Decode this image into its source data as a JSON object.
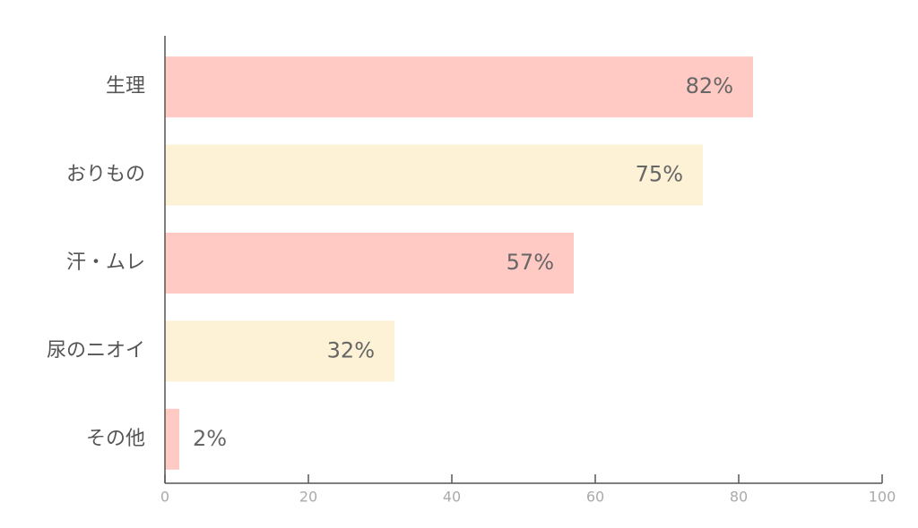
{
  "chart_data": {
    "type": "hbar",
    "categories": [
      "生理",
      "おりもの",
      "汗・ムレ",
      "尿のニオイ",
      "その他"
    ],
    "values": [
      82,
      75,
      57,
      32,
      2
    ],
    "value_labels": [
      "82%",
      "75%",
      "57%",
      "32%",
      "2%"
    ],
    "colors": [
      "#ffc9c4",
      "#fdf1d6",
      "#ffc9c4",
      "#fdf1d6",
      "#ffc9c4"
    ],
    "xlim": [
      0,
      100
    ],
    "xticks": [
      0,
      20,
      40,
      60,
      80,
      100
    ]
  }
}
